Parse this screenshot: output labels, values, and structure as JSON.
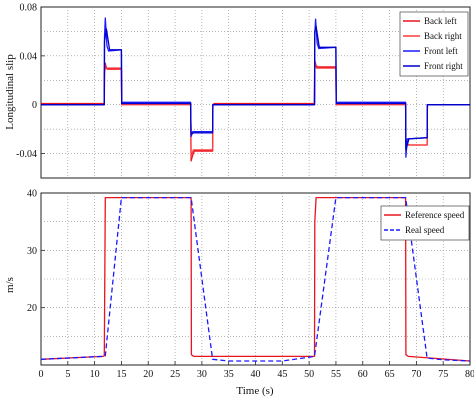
{
  "chart_data": [
    {
      "type": "line",
      "ylabel": "Longitudinal slip",
      "xlim": [
        0,
        80
      ],
      "ylim": [
        -0.06,
        0.08
      ],
      "yticks": [
        0.08,
        0.04,
        0,
        -0.04
      ],
      "ytick_labels": [
        "0.08",
        "0.04",
        "0",
        "-0.04"
      ],
      "grid": true,
      "legend_position": "top-right",
      "series": [
        {
          "name": "Back left",
          "color": "#e8141e",
          "x": [
            0,
            11.8,
            11.85,
            12.0,
            12.2,
            15.0,
            15.05,
            15.3,
            27.9,
            28.0,
            28.3,
            28.6,
            32.0,
            32.05,
            32.3,
            51.0,
            51.05,
            51.3,
            51.6,
            55.0,
            55.05,
            55.3,
            68.0,
            68.05,
            68.3,
            68.6,
            72.0,
            72.05,
            72.4,
            80
          ],
          "y": [
            0.001,
            0.001,
            0.025,
            0.034,
            0.03,
            0.03,
            0.0,
            0.001,
            0.001,
            -0.046,
            -0.041,
            -0.038,
            -0.038,
            0.0,
            0.001,
            0.001,
            0.036,
            0.032,
            0.031,
            0.031,
            0.0,
            0.001,
            0.001,
            -0.035,
            -0.032,
            -0.033,
            -0.033,
            0.0,
            0.0,
            0.0
          ]
        },
        {
          "name": "Back right",
          "color": "#ff3b3b",
          "x": [
            0,
            11.8,
            11.85,
            12.1,
            12.4,
            15.0,
            15.05,
            15.3,
            27.9,
            28.0,
            28.4,
            32.0,
            32.05,
            51.0,
            51.05,
            51.4,
            55.0,
            55.05,
            68.0,
            68.05,
            68.5,
            72.0,
            72.05,
            80
          ],
          "y": [
            0.0,
            0.0,
            0.028,
            0.03,
            0.029,
            0.029,
            0.0,
            0.0,
            0.0,
            -0.043,
            -0.037,
            -0.037,
            0.0,
            0.0,
            0.034,
            0.03,
            0.03,
            0.0,
            0.0,
            -0.033,
            -0.033,
            -0.033,
            0.0,
            0.0
          ]
        },
        {
          "name": "Front left",
          "color": "#1a1aff",
          "x": [
            0,
            11.8,
            11.85,
            12.0,
            12.3,
            12.6,
            15.0,
            15.05,
            15.3,
            27.9,
            28.0,
            28.3,
            32.0,
            32.05,
            51.0,
            51.05,
            51.2,
            51.5,
            51.8,
            55.0,
            55.05,
            55.3,
            68.0,
            68.05,
            68.3,
            72.0,
            72.05,
            80
          ],
          "y": [
            0.0,
            0.0,
            0.055,
            0.071,
            0.048,
            0.044,
            0.045,
            0.001,
            0.002,
            0.002,
            -0.026,
            -0.022,
            -0.022,
            0.0,
            0.0,
            0.058,
            0.07,
            0.05,
            0.046,
            0.047,
            0.002,
            0.002,
            0.002,
            -0.043,
            -0.028,
            -0.027,
            0.0,
            0.0
          ]
        },
        {
          "name": "Front right",
          "color": "#0000cc",
          "x": [
            0,
            11.8,
            11.85,
            12.2,
            12.8,
            15.0,
            15.05,
            27.9,
            28.0,
            28.5,
            32.0,
            32.05,
            51.0,
            51.05,
            51.3,
            51.9,
            55.0,
            55.05,
            68.0,
            68.05,
            68.6,
            72.0,
            72.05,
            80
          ],
          "y": [
            0.0,
            0.0,
            0.052,
            0.062,
            0.045,
            0.045,
            0.001,
            0.001,
            -0.024,
            -0.023,
            -0.023,
            0.0,
            0.0,
            0.06,
            0.064,
            0.047,
            0.047,
            0.001,
            0.001,
            -0.037,
            -0.028,
            -0.027,
            0.0,
            0.0
          ]
        }
      ]
    },
    {
      "type": "line",
      "xlabel": "Time (s)",
      "ylabel": "m/s",
      "xlim": [
        0,
        80
      ],
      "ylim": [
        10,
        40
      ],
      "xticks": [
        0,
        5,
        10,
        15,
        20,
        25,
        30,
        35,
        40,
        45,
        50,
        55,
        60,
        65,
        70,
        75,
        80
      ],
      "yticks": [
        40,
        30,
        20
      ],
      "grid": true,
      "legend_position": "top-right",
      "series": [
        {
          "name": "Reference speed",
          "color": "#e8141e",
          "dash": "solid",
          "x": [
            0,
            11.5,
            11.8,
            12.0,
            28.0,
            28.05,
            28.5,
            51.0,
            51.05,
            51.3,
            68.0,
            68.05,
            68.5,
            80
          ],
          "y": [
            11.0,
            11.5,
            11.6,
            39.2,
            39.2,
            11.8,
            11.5,
            11.5,
            35.0,
            39.2,
            39.2,
            11.8,
            11.5,
            10.7
          ]
        },
        {
          "name": "Real speed",
          "color": "#1a1aff",
          "dash": "dashed",
          "x": [
            0,
            11.5,
            12.0,
            15.0,
            28.0,
            32.0,
            35.0,
            45.0,
            51.0,
            55.0,
            68.0,
            72.0,
            75.0,
            80
          ],
          "y": [
            11.0,
            11.5,
            11.6,
            39.2,
            39.2,
            11.0,
            10.7,
            10.7,
            11.5,
            39.2,
            39.2,
            11.2,
            10.9,
            10.7
          ]
        }
      ]
    }
  ]
}
